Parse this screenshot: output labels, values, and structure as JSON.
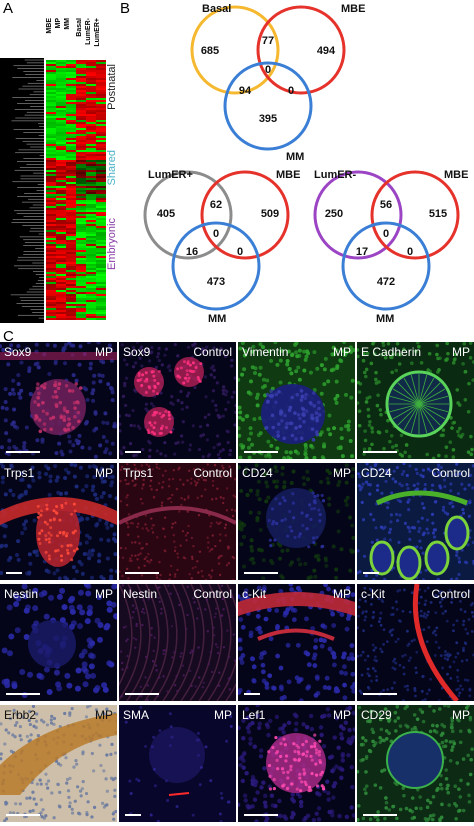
{
  "panels": {
    "a": "A",
    "b": "B",
    "c": "C"
  },
  "heatmap": {
    "columns": [
      "MBE",
      "MP",
      "MM",
      "Basal",
      "LumER-",
      "LumER+"
    ],
    "clusters": [
      {
        "label": "Postnatal",
        "color": "#222222"
      },
      {
        "label": "Shared",
        "color": "#4ab3c8"
      },
      {
        "label": "Embryonic",
        "color": "#8a3fa8"
      }
    ]
  },
  "venns": [
    {
      "sets": [
        "Basal",
        "MBE",
        "MM"
      ],
      "colors": [
        "#f5b82e",
        "#e5322b",
        "#3a7fd5"
      ],
      "values": {
        "a_only": "685",
        "b_only": "494",
        "c_only": "395",
        "ab": "77",
        "ac": "94",
        "bc": "0",
        "abc": "0"
      }
    },
    {
      "sets": [
        "LumER+",
        "MBE",
        "MM"
      ],
      "colors": [
        "#8c8c8c",
        "#e5322b",
        "#3a7fd5"
      ],
      "values": {
        "a_only": "405",
        "b_only": "509",
        "c_only": "473",
        "ab": "62",
        "ac": "16",
        "bc": "0",
        "abc": "0"
      }
    },
    {
      "sets": [
        "LumER-",
        "MBE",
        "MM"
      ],
      "colors": [
        "#9b45c4",
        "#e5322b",
        "#3a7fd5"
      ],
      "values": {
        "a_only": "250",
        "b_only": "515",
        "c_only": "472",
        "ab": "56",
        "ac": "17",
        "bc": "0",
        "abc": "0"
      }
    }
  ],
  "micrographs": [
    {
      "marker": "Sox9",
      "condition": "MP",
      "style": "red-blue"
    },
    {
      "marker": "Sox9",
      "condition": "Control",
      "style": "red-spots"
    },
    {
      "marker": "Vimentin",
      "condition": "MP",
      "style": "green-blue"
    },
    {
      "marker": "E Cadherin",
      "condition": "MP",
      "style": "green-ring"
    },
    {
      "marker": "Trps1",
      "condition": "MP",
      "style": "red-bud"
    },
    {
      "marker": "Trps1",
      "condition": "Control",
      "style": "dark-red"
    },
    {
      "marker": "CD24",
      "condition": "MP",
      "style": "dim-green"
    },
    {
      "marker": "CD24",
      "condition": "Control",
      "style": "green-lobes"
    },
    {
      "marker": "Nestin",
      "condition": "MP",
      "style": "blue-nuclei"
    },
    {
      "marker": "Nestin",
      "condition": "Control",
      "style": "dark-streaks"
    },
    {
      "marker": "c-Kit",
      "condition": "MP",
      "style": "red-band"
    },
    {
      "marker": "c-Kit",
      "condition": "Control",
      "style": "red-curve"
    },
    {
      "marker": "Erbb2",
      "condition": "MP",
      "style": "ihc"
    },
    {
      "marker": "SMA",
      "condition": "MP",
      "style": "dim-blue"
    },
    {
      "marker": "Lef1",
      "condition": "MP",
      "style": "magenta-bud"
    },
    {
      "marker": "CD29",
      "condition": "MP",
      "style": "green-bud"
    }
  ]
}
